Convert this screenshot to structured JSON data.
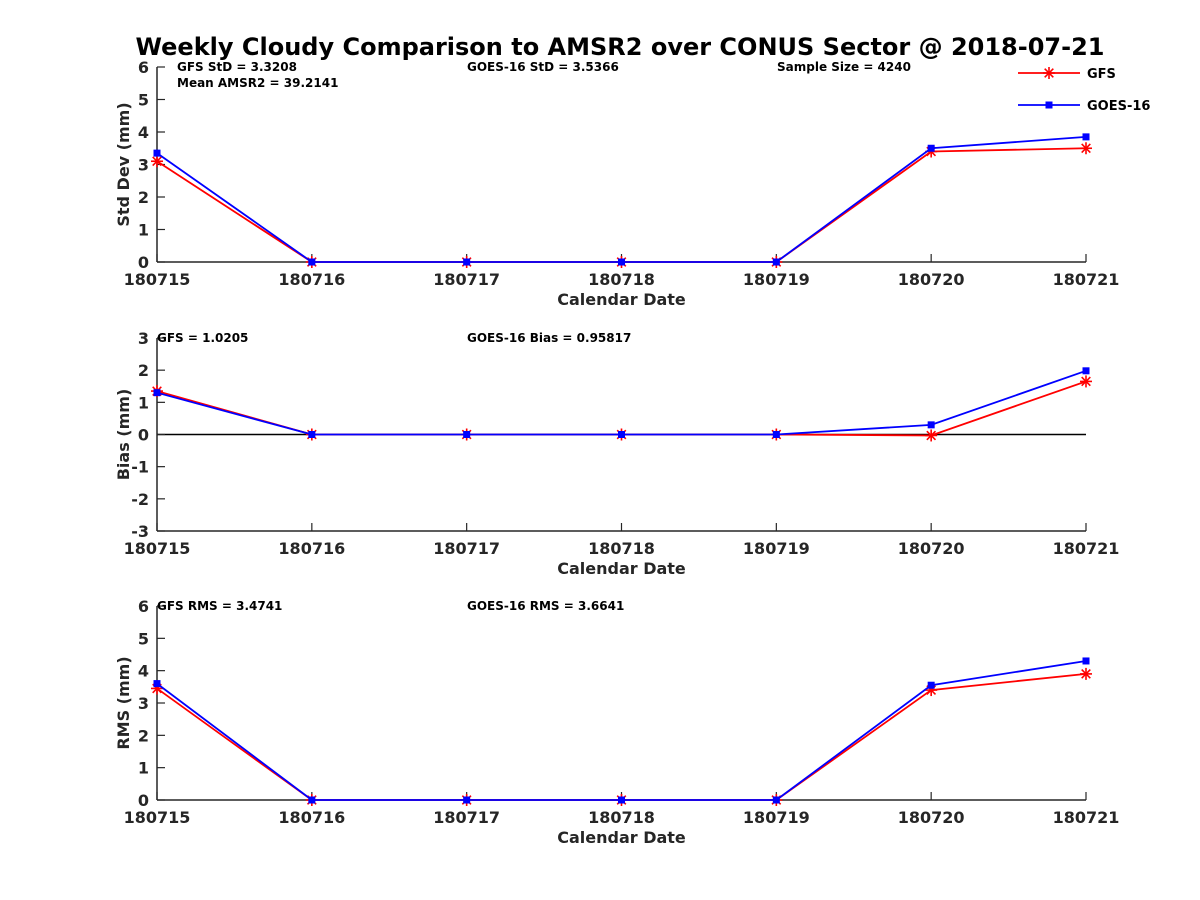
{
  "figure": {
    "title": "Weekly Cloudy Comparison to AMSR2 over CONUS Sector @ 2018-07-21",
    "colors": {
      "GFS": "#ff0000",
      "GOES-16": "#0000ff",
      "axis": "#262626",
      "zero_line": "#000000"
    }
  },
  "legend": {
    "position": "top-right",
    "entries": [
      {
        "name": "GFS",
        "color": "#ff0000",
        "marker": "asterisk"
      },
      {
        "name": "GOES-16",
        "color": "#0000ff",
        "marker": "square"
      }
    ]
  },
  "chart_data": [
    {
      "type": "line",
      "title": "",
      "xlabel": "Calendar Date",
      "ylabel": "Std Dev (mm)",
      "x": [
        "180715",
        "180716",
        "180717",
        "180718",
        "180719",
        "180720",
        "180721"
      ],
      "ylim": [
        0,
        6
      ],
      "yticks": [
        "0",
        "1",
        "2",
        "3",
        "4",
        "5",
        "6"
      ],
      "annotations": [
        "GFS StD = 3.3208",
        "Mean AMSR2 = 39.2141",
        "GOES-16 StD = 3.5366",
        "Sample Size = 4240"
      ],
      "series": [
        {
          "name": "GFS",
          "values": [
            3.1,
            0,
            0,
            0,
            0,
            3.4,
            3.5
          ]
        },
        {
          "name": "GOES-16",
          "values": [
            3.35,
            0,
            0,
            0,
            0,
            3.5,
            3.85
          ]
        }
      ]
    },
    {
      "type": "line",
      "title": "",
      "xlabel": "Calendar Date",
      "ylabel": "Bias (mm)",
      "x": [
        "180715",
        "180716",
        "180717",
        "180718",
        "180719",
        "180720",
        "180721"
      ],
      "ylim": [
        -3,
        3
      ],
      "yticks": [
        "-3",
        "-2",
        "-1",
        "0",
        "1",
        "2",
        "3"
      ],
      "zero_line": true,
      "annotations": [
        "GFS = 1.0205",
        "GOES-16 Bias  = 0.95817"
      ],
      "series": [
        {
          "name": "GFS",
          "values": [
            1.35,
            0,
            0,
            0,
            0,
            -0.03,
            1.65
          ]
        },
        {
          "name": "GOES-16",
          "values": [
            1.3,
            0,
            0,
            0,
            0,
            0.3,
            1.98
          ]
        }
      ]
    },
    {
      "type": "line",
      "title": "",
      "xlabel": "Calendar Date",
      "ylabel": "RMS (mm)",
      "x": [
        "180715",
        "180716",
        "180717",
        "180718",
        "180719",
        "180720",
        "180721"
      ],
      "ylim": [
        0,
        6
      ],
      "yticks": [
        "0",
        "1",
        "2",
        "3",
        "4",
        "5",
        "6"
      ],
      "annotations": [
        "GFS RMS = 3.4741",
        "GOES-16 RMS = 3.6641"
      ],
      "series": [
        {
          "name": "GFS",
          "values": [
            3.45,
            0,
            0,
            0,
            0,
            3.4,
            3.9
          ]
        },
        {
          "name": "GOES-16",
          "values": [
            3.6,
            0,
            0,
            0,
            0,
            3.55,
            4.3
          ]
        }
      ]
    }
  ]
}
